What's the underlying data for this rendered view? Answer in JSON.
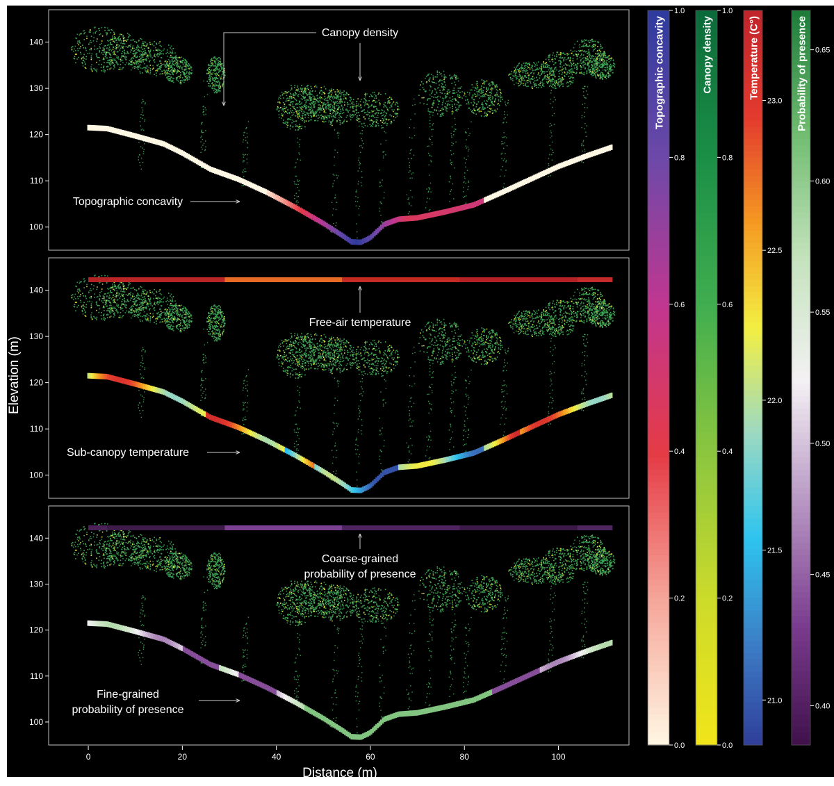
{
  "chart_data": {
    "type": "scatter",
    "description_x_axis": {
      "label": "Distance (m)",
      "ticks": [
        0,
        20,
        40,
        60,
        80,
        100
      ],
      "range": [
        -4,
        115
      ]
    },
    "y_axis": {
      "label": "Elevation (m)",
      "ticks": [
        100,
        110,
        120,
        130,
        140
      ],
      "range": [
        95,
        147
      ]
    },
    "ground_profile": {
      "x": [
        0,
        4,
        10,
        16,
        20,
        26,
        32,
        38,
        44,
        50,
        54,
        56,
        58,
        60,
        63,
        66,
        70,
        76,
        82,
        88,
        94,
        100,
        106,
        112
      ],
      "y": [
        121.5,
        121.3,
        119.7,
        118.0,
        116.0,
        112.5,
        110.3,
        107.5,
        104.3,
        100.8,
        98.2,
        96.8,
        96.7,
        97.7,
        100.6,
        101.7,
        102.0,
        103.3,
        104.8,
        107.5,
        110.3,
        113.1,
        115.4,
        117.5
      ]
    },
    "panels": [
      {
        "id": "topographic-concavity",
        "annotations": [
          {
            "text": "Canopy density"
          },
          {
            "text": "Topographic concavity"
          }
        ]
      },
      {
        "id": "sub-canopy-temperature",
        "annotations": [
          {
            "text": "Free-air temperature"
          },
          {
            "text": "Sub-canopy temperature"
          }
        ]
      },
      {
        "id": "probability-of-presence",
        "annotations": [
          {
            "text": "Coarse-grained"
          },
          {
            "text": "probability of presence"
          },
          {
            "text": "Fine-grained"
          },
          {
            "text": "probability of presence"
          }
        ]
      }
    ],
    "colorbars": [
      {
        "label": "Topographic concavity",
        "range": [
          0.0,
          1.0
        ],
        "ticks": [
          "1.0",
          "0.8",
          "0.6",
          "0.4",
          "0.2",
          "0.0"
        ],
        "tick_values": [
          1.0,
          0.8,
          0.6,
          0.4,
          0.2,
          0.0
        ],
        "colors": [
          "#fff8e4",
          "#f6a79b",
          "#e53b45",
          "#c1368f",
          "#6e49a9",
          "#2f3b9e"
        ],
        "label_bg": "#3c46a8"
      },
      {
        "label": "Canopy density",
        "range": [
          0.0,
          1.0
        ],
        "ticks": [
          "1.0",
          "0.8",
          "0.6",
          "0.4",
          "0.2",
          "0.0"
        ],
        "tick_values": [
          1.0,
          0.8,
          0.6,
          0.4,
          0.2,
          0.0
        ],
        "colors": [
          "#f2e51a",
          "#cddb2a",
          "#8cc63f",
          "#41ae4f",
          "#1c8f47",
          "#0c6b3a"
        ],
        "label_bg": "#0e7440"
      },
      {
        "label": "Temperature (C°)",
        "range": [
          20.85,
          23.3
        ],
        "ticks": [
          "23.0",
          "22.5",
          "22.0",
          "21.5",
          "21.0"
        ],
        "tick_values": [
          23.0,
          22.5,
          22.0,
          21.5,
          21.0
        ],
        "colors": [
          "#2f3c98",
          "#3c7ec7",
          "#2ec4ef",
          "#9cd9c2",
          "#f3ef42",
          "#f59a22",
          "#e33b2e",
          "#c2242b"
        ],
        "label_bg": "#d4312b"
      },
      {
        "label": "Probability of presence",
        "range": [
          0.385,
          0.665
        ],
        "ticks": [
          "0.65",
          "0.60",
          "0.55",
          "0.50",
          "0.45",
          "0.40"
        ],
        "tick_values": [
          0.65,
          0.6,
          0.55,
          0.5,
          0.45,
          0.4
        ],
        "colors": [
          "#3e1049",
          "#7a3c8e",
          "#b796c3",
          "#f4f1f4",
          "#c4e3bc",
          "#72bd72",
          "#1f7d3a"
        ],
        "label_bg": "#238040"
      }
    ],
    "free_air_temperature_segments": [
      {
        "x0": 0,
        "x1": 4,
        "color": "#b52425"
      },
      {
        "x0": 4,
        "x1": 29,
        "color": "#ba2526"
      },
      {
        "x0": 29,
        "x1": 54,
        "color": "#e86b25"
      },
      {
        "x0": 54,
        "x1": 79,
        "color": "#c52a25"
      },
      {
        "x0": 79,
        "x1": 104,
        "color": "#b42225"
      },
      {
        "x0": 104,
        "x1": 111.5,
        "color": "#c42b2a"
      }
    ],
    "coarse_probability_segments": [
      {
        "x0": 0,
        "x1": 4,
        "color": "#4b2358"
      },
      {
        "x0": 4,
        "x1": 29,
        "color": "#3d1c4a"
      },
      {
        "x0": 29,
        "x1": 54,
        "color": "#7b4091"
      },
      {
        "x0": 54,
        "x1": 79,
        "color": "#4e2460"
      },
      {
        "x0": 79,
        "x1": 104,
        "color": "#3c1a48"
      },
      {
        "x0": 104,
        "x1": 111.5,
        "color": "#4e2660"
      }
    ],
    "background": "#000000",
    "panel_border": "#bfbfbf",
    "text_color": "#ffffff"
  }
}
